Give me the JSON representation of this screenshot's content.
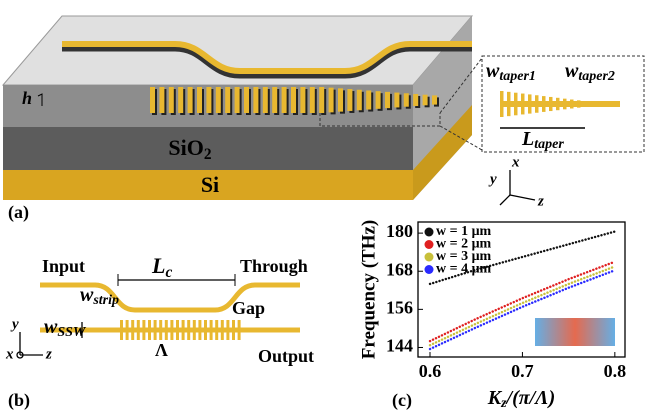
{
  "panel_a": {
    "label": "(a)",
    "sio2": {
      "symbol": "SiO",
      "subscript": "2"
    },
    "si": "Si",
    "h": "h",
    "w_taper1": {
      "symbol": "w",
      "subscript": "taper1"
    },
    "w_taper2": {
      "symbol": "w",
      "subscript": "taper2"
    },
    "l_taper": {
      "symbol": "L",
      "subscript": "taper"
    },
    "axes": {
      "x": "x",
      "y": "y",
      "z": "z"
    }
  },
  "panel_b": {
    "label": "(b)",
    "input": "Input",
    "through": "Through",
    "gap": "Gap",
    "output": "Output",
    "l_c": {
      "symbol": "L",
      "subscript": "c"
    },
    "w_strip": {
      "symbol": "w",
      "subscript": "strip"
    },
    "w_ssw": {
      "symbol": "w",
      "subscript": "SSW"
    },
    "period": "Λ",
    "axes": {
      "x": "x",
      "y": "y",
      "z": "z"
    }
  },
  "panel_c": {
    "label": "(c)"
  },
  "chart_data": {
    "type": "line",
    "y_label": "Frequency (THz)",
    "x_label": {
      "symbol": "K",
      "subscript": "z",
      "rest": "/(π/Λ)"
    },
    "x": [
      0.6,
      0.65,
      0.7,
      0.75,
      0.8
    ],
    "series": [
      {
        "name": "w = 1 μm",
        "color": "#111111",
        "values": [
          164,
          168.5,
          172.5,
          176.5,
          180.5
        ]
      },
      {
        "name": "w = 2 μm",
        "color": "#e02020",
        "values": [
          146,
          153,
          159.5,
          165.5,
          171
        ]
      },
      {
        "name": "w = 3 μm",
        "color": "#c8c03a",
        "values": [
          144.7,
          151.5,
          158,
          164,
          169.5
        ]
      },
      {
        "name": "w = 4 μm",
        "color": "#2a2aff",
        "values": [
          143.5,
          150.3,
          156.8,
          162.8,
          168.3
        ]
      }
    ],
    "xlim": [
      0.587,
      0.811
    ],
    "ylim": [
      141,
      183.5
    ],
    "xticks": [
      0.6,
      0.7,
      0.8
    ],
    "yticks": [
      144,
      156,
      168,
      180
    ],
    "legend": "upper left",
    "line_style": "dotted"
  }
}
